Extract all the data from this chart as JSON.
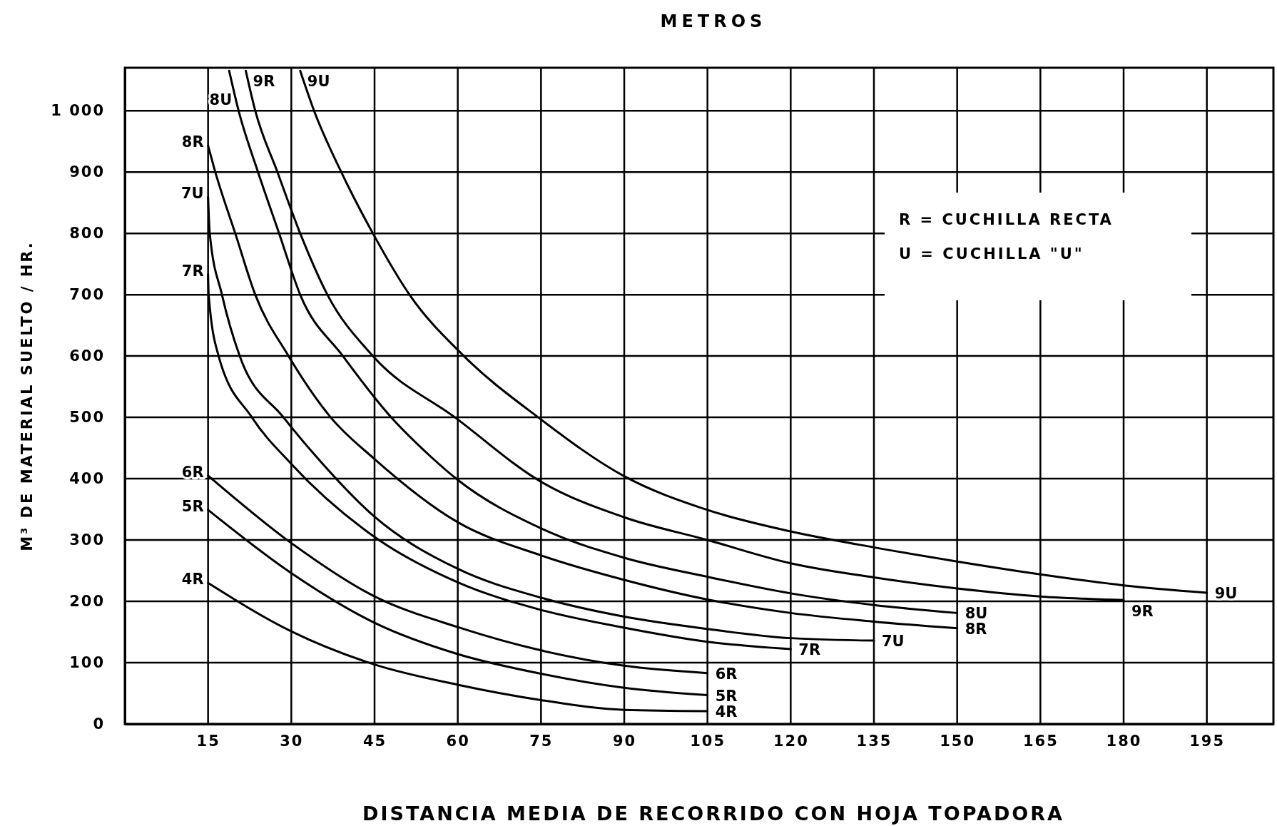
{
  "chart_data": {
    "type": "line",
    "title": "METROS",
    "xlabel": "DISTANCIA MEDIA DE RECORRIDO CON HOJA TOPADORA",
    "ylabel": "M³ DE MATERIAL SUELTO / HR.",
    "annotations": [
      "R = CUCHILLA RECTA",
      "U = CUCHILLA \"U\""
    ],
    "xlim": [
      0,
      207
    ],
    "ylim": [
      0,
      1070
    ],
    "xticks": [
      15,
      30,
      45,
      60,
      75,
      90,
      105,
      120,
      135,
      150,
      165,
      180,
      195
    ],
    "yticks": [
      0,
      100,
      200,
      300,
      400,
      500,
      600,
      700,
      800,
      900,
      {
        "value": 1000,
        "label": "1 000"
      }
    ],
    "grid": true,
    "series": [
      {
        "name": "4R",
        "color": "#000000",
        "x": [
          15,
          30,
          45,
          60,
          75,
          90,
          105
        ],
        "values": [
          230,
          151,
          97,
          64,
          39,
          23,
          21
        ]
      },
      {
        "name": "5R",
        "color": "#000000",
        "x": [
          15,
          30,
          45,
          60,
          75,
          90,
          105
        ],
        "values": [
          349,
          246,
          165,
          114,
          82,
          59,
          47
        ]
      },
      {
        "name": "6R",
        "color": "#000000",
        "x": [
          15,
          30,
          45,
          60,
          75,
          90,
          105
        ],
        "values": [
          405,
          295,
          208,
          158,
          120,
          95,
          83
        ]
      },
      {
        "name": "7R",
        "color": "#000000",
        "x": [
          15,
          15.1,
          16.9,
          22.9,
          30,
          45,
          60,
          75,
          90,
          105,
          120
        ],
        "values": [
          733,
          700,
          600,
          500,
          424,
          305,
          231,
          186,
          157,
          134,
          122
        ]
      },
      {
        "name": "7U",
        "color": "#000000",
        "x": [
          15,
          15.3,
          17.5,
          20.7,
          28.6,
          34.4,
          45,
          60,
          75,
          90,
          105,
          120,
          135
        ],
        "values": [
          859,
          800,
          700,
          600,
          500,
          437,
          338,
          253,
          206,
          175,
          155,
          140,
          136
        ]
      },
      {
        "name": "8R",
        "color": "#000000",
        "x": [
          15,
          16.3,
          19.9,
          23.5,
          29.5,
          37.1,
          45,
          60,
          75,
          90,
          105,
          120,
          135,
          150
        ],
        "values": [
          943,
          900,
          800,
          700,
          600,
          500,
          432,
          329,
          275,
          235,
          203,
          181,
          167,
          156
        ]
      },
      {
        "name": "8U",
        "color": "#000000",
        "x": [
          18.8,
          20.5,
          24,
          27.8,
          31.6,
          39.3,
          48,
          55,
          60,
          75,
          90,
          105,
          120,
          135,
          150
        ],
        "values": [
          1065,
          1000,
          900,
          800,
          700,
          600,
          500,
          437,
          398,
          319,
          271,
          240,
          213,
          194,
          181
        ]
      },
      {
        "name": "9R",
        "color": "#000000",
        "x": [
          21.8,
          23.5,
          27.5,
          31.6,
          36.5,
          44.7,
          59.5,
          75,
          90,
          105,
          120,
          135,
          150,
          165,
          180
        ],
        "values": [
          1065,
          1000,
          900,
          800,
          700,
          600,
          500,
          395,
          337,
          300,
          262,
          239,
          221,
          208,
          202
        ]
      },
      {
        "name": "9U",
        "color": "#000000",
        "x": [
          31.6,
          34.1,
          39,
          44.7,
          51.3,
          61.1,
          74.5,
          90,
          105,
          120,
          135,
          150,
          165,
          180,
          195
        ],
        "values": [
          1065,
          1000,
          900,
          800,
          700,
          600,
          500,
          404,
          349,
          314,
          288,
          265,
          244,
          226,
          214
        ]
      }
    ]
  }
}
